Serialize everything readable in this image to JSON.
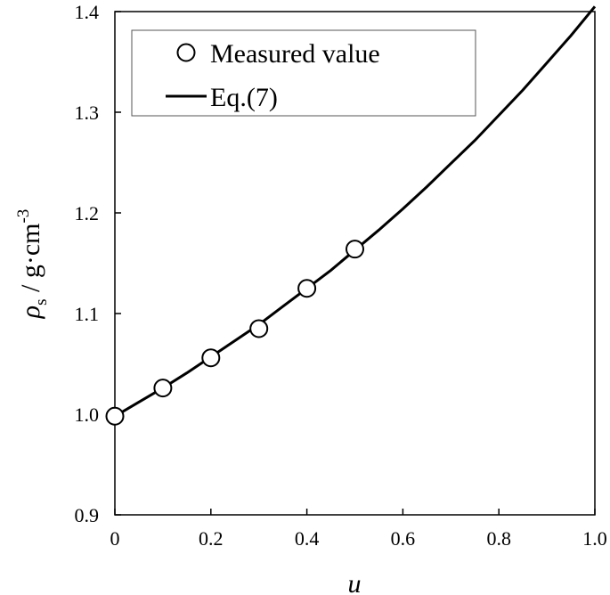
{
  "chart_data": {
    "type": "scatter",
    "xlabel": "u",
    "ylabel": {
      "symbol": "ρ",
      "subscript": "s",
      "unit": " / g·cm",
      "exponent": "-3"
    },
    "xlim": [
      0,
      1.0
    ],
    "ylim": [
      0.9,
      1.4
    ],
    "x_ticks": [
      "0",
      "0.2",
      "0.4",
      "0.6",
      "0.8",
      "1.0"
    ],
    "y_ticks": [
      "0.9",
      "1.0",
      "1.1",
      "1.2",
      "1.3",
      "1.4"
    ],
    "grid": false,
    "legend_position": "top-left",
    "series": [
      {
        "name": "Measured value",
        "marker": "open-circle",
        "color": "#000000",
        "x": [
          0,
          0.1,
          0.2,
          0.3,
          0.4,
          0.5
        ],
        "y": [
          0.998,
          1.026,
          1.056,
          1.085,
          1.125,
          1.164
        ]
      },
      {
        "name": "Eq.(7)",
        "style": "line",
        "color": "#000000",
        "x": [
          0,
          0.05,
          0.1,
          0.15,
          0.2,
          0.25,
          0.3,
          0.35,
          0.4,
          0.45,
          0.5,
          0.55,
          0.6,
          0.65,
          0.7,
          0.75,
          0.8,
          0.85,
          0.9,
          0.95,
          1.0
        ],
        "y": [
          0.998,
          1.012,
          1.026,
          1.041,
          1.057,
          1.073,
          1.089,
          1.107,
          1.125,
          1.143,
          1.163,
          1.183,
          1.204,
          1.226,
          1.249,
          1.272,
          1.297,
          1.322,
          1.349,
          1.376,
          1.405
        ]
      }
    ]
  }
}
